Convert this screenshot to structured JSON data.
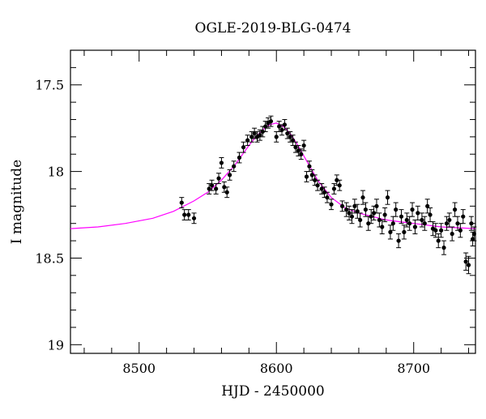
{
  "chart_data": {
    "type": "scatter",
    "title": "OGLE-2019-BLG-0474",
    "xlabel": "HJD - 2450000",
    "ylabel": "I magnitude",
    "xlim": [
      8450,
      8745
    ],
    "ylim": [
      19.05,
      17.3
    ],
    "y_inverted": true,
    "x_ticks": [
      8500,
      8600,
      8700
    ],
    "x_tick_labels": [
      "8500",
      "8600",
      "8700"
    ],
    "y_ticks": [
      17.5,
      18,
      18.5,
      19
    ],
    "y_tick_labels": [
      "17.5",
      "18",
      "18.5",
      "19"
    ],
    "grid": false,
    "colors": {
      "data": "#000000",
      "model": "#ff00ff"
    },
    "model": {
      "name": "",
      "x": [
        8450,
        8470,
        8490,
        8510,
        8525,
        8540,
        8550,
        8560,
        8570,
        8580,
        8585,
        8590,
        8595,
        8600,
        8605,
        8610,
        8615,
        8620,
        8625,
        8630,
        8640,
        8650,
        8660,
        8670,
        8680,
        8690,
        8700,
        8720,
        8745
      ],
      "y": [
        18.33,
        18.32,
        18.3,
        18.27,
        18.23,
        18.17,
        18.12,
        18.05,
        17.96,
        17.85,
        17.8,
        17.76,
        17.73,
        17.72,
        17.74,
        17.78,
        17.84,
        17.91,
        17.98,
        18.05,
        18.15,
        18.21,
        18.24,
        18.26,
        18.28,
        18.29,
        18.3,
        18.32,
        18.33
      ]
    },
    "series": [
      {
        "name": "",
        "x": [
          8531,
          8533,
          8536,
          8540,
          8551,
          8553,
          8556,
          8558,
          8560,
          8562,
          8564,
          8566,
          8569,
          8573,
          8576,
          8579,
          8582,
          8584,
          8586,
          8588,
          8590,
          8592,
          8594,
          8596,
          8600,
          8602,
          8604,
          8606,
          8608,
          8610,
          8612,
          8614,
          8616,
          8618,
          8620,
          8622,
          8624,
          8626,
          8628,
          8630,
          8633,
          8635,
          8637,
          8640,
          8642,
          8644,
          8646,
          8648,
          8651,
          8653,
          8655,
          8657,
          8659,
          8661,
          8663,
          8665,
          8667,
          8669,
          8671,
          8673,
          8675,
          8677,
          8679,
          8681,
          8683,
          8685,
          8687,
          8689,
          8691,
          8693,
          8695,
          8697,
          8699,
          8701,
          8703,
          8706,
          8708,
          8710,
          8712,
          8714,
          8716,
          8718,
          8720,
          8722,
          8724,
          8726,
          8728,
          8730,
          8732,
          8734,
          8736,
          8738,
          8740,
          8742,
          8743,
          8744
        ],
        "y": [
          18.18,
          18.25,
          18.25,
          18.27,
          18.1,
          18.08,
          18.1,
          18.04,
          17.95,
          18.09,
          18.12,
          18.02,
          17.97,
          17.92,
          17.86,
          17.82,
          17.8,
          17.78,
          17.8,
          17.79,
          17.77,
          17.74,
          17.72,
          17.71,
          17.8,
          17.74,
          17.76,
          17.73,
          17.78,
          17.8,
          17.82,
          17.86,
          17.88,
          17.9,
          17.85,
          18.03,
          17.97,
          18.02,
          18.05,
          18.08,
          18.1,
          18.12,
          18.15,
          18.19,
          18.1,
          18.05,
          18.08,
          18.2,
          18.22,
          18.24,
          18.26,
          18.2,
          18.23,
          18.28,
          18.15,
          18.22,
          18.3,
          18.26,
          18.24,
          18.2,
          18.28,
          18.32,
          18.25,
          18.15,
          18.35,
          18.3,
          18.22,
          18.4,
          18.26,
          18.35,
          18.28,
          18.3,
          18.22,
          18.32,
          18.24,
          18.28,
          18.3,
          18.2,
          18.25,
          18.33,
          18.34,
          18.4,
          18.34,
          18.44,
          18.3,
          18.28,
          18.36,
          18.22,
          18.3,
          18.34,
          18.26,
          18.52,
          18.54,
          18.3,
          18.39,
          18.36
        ],
        "err": [
          0.03,
          0.03,
          0.03,
          0.03,
          0.03,
          0.03,
          0.03,
          0.03,
          0.03,
          0.03,
          0.03,
          0.03,
          0.03,
          0.03,
          0.03,
          0.03,
          0.03,
          0.03,
          0.03,
          0.03,
          0.03,
          0.03,
          0.03,
          0.03,
          0.03,
          0.03,
          0.03,
          0.03,
          0.03,
          0.03,
          0.03,
          0.03,
          0.03,
          0.03,
          0.03,
          0.03,
          0.03,
          0.03,
          0.03,
          0.03,
          0.03,
          0.03,
          0.03,
          0.03,
          0.03,
          0.03,
          0.03,
          0.03,
          0.04,
          0.04,
          0.04,
          0.04,
          0.04,
          0.04,
          0.04,
          0.04,
          0.04,
          0.04,
          0.04,
          0.04,
          0.04,
          0.04,
          0.04,
          0.04,
          0.04,
          0.04,
          0.04,
          0.04,
          0.04,
          0.04,
          0.04,
          0.04,
          0.04,
          0.04,
          0.04,
          0.04,
          0.04,
          0.04,
          0.04,
          0.04,
          0.04,
          0.04,
          0.04,
          0.04,
          0.04,
          0.04,
          0.04,
          0.04,
          0.04,
          0.04,
          0.04,
          0.05,
          0.05,
          0.04,
          0.04,
          0.04
        ]
      }
    ]
  }
}
